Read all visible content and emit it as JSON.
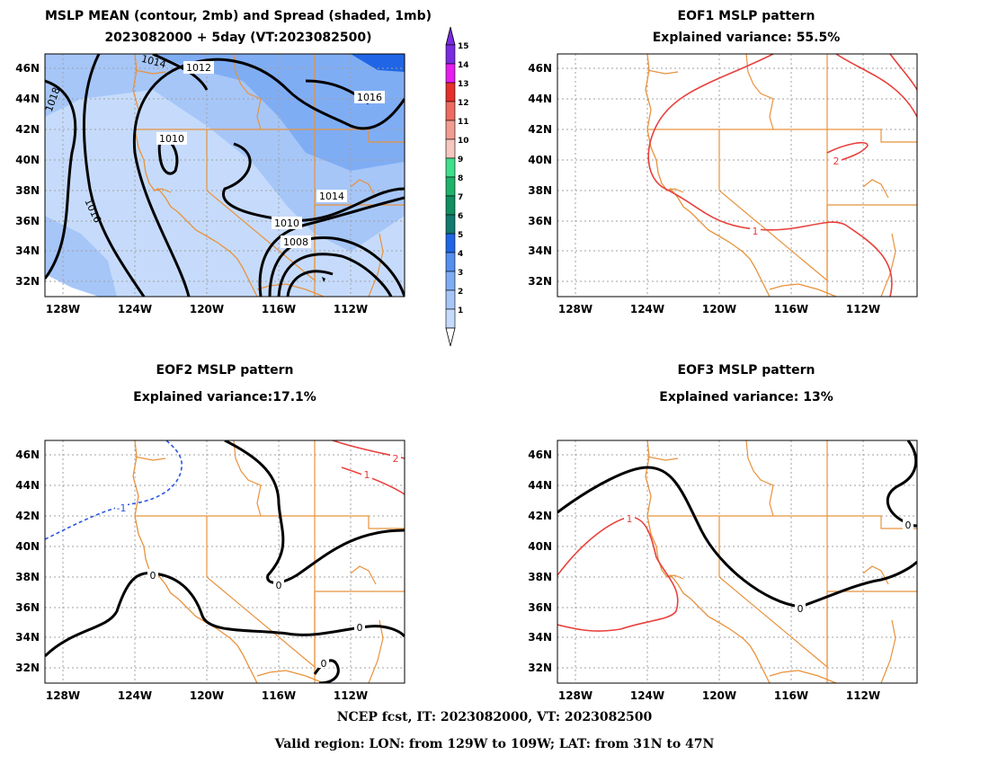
{
  "panels": [
    {
      "title1": "MSLP MEAN (contour, 2mb) and Spread (shaded, 1mb)",
      "title2": "2023082000 + 5day (VT:2023082500)"
    },
    {
      "title1": "EOF1 MSLP pattern",
      "title2": "Explained variance: 55.5%"
    },
    {
      "title1": "EOF2 MSLP pattern",
      "title2": "Explained variance:17.1%"
    },
    {
      "title1": "EOF3 MSLP pattern",
      "title2": "Explained variance: 13%"
    }
  ],
  "axes": {
    "lon_ticks": [
      "128W",
      "124W",
      "120W",
      "116W",
      "112W"
    ],
    "lat_ticks": [
      "46N",
      "44N",
      "42N",
      "40N",
      "38N",
      "36N",
      "34N",
      "32N"
    ]
  },
  "colorbar": {
    "levels": [
      "1",
      "2",
      "3",
      "4",
      "5",
      "6",
      "7",
      "8",
      "9",
      "10",
      "11",
      "12",
      "13",
      "14",
      "15"
    ],
    "colors": [
      "#c6dbfb",
      "#a6c6f8",
      "#7fadf4",
      "#5590ef",
      "#1f66e6",
      "#127a6e",
      "#118f5f",
      "#1fb36a",
      "#3fe08d",
      "#f6c6c0",
      "#f39c92",
      "#ee6b61",
      "#e6302a",
      "#e61ef0",
      "#7a2be0"
    ]
  },
  "mean_contours": [
    "1018",
    "1016",
    "1014",
    "1012",
    "1010",
    "1008",
    "1010",
    "1014",
    "1016"
  ],
  "eof_labels": {
    "eof1": [
      "1",
      "2"
    ],
    "eof2": [
      "-1",
      "1",
      "2",
      "0",
      "0",
      "0",
      "0"
    ],
    "eof3": [
      "1",
      "0",
      "0"
    ]
  },
  "footer": {
    "line1": "NCEP fcst, IT: 2023082000, VT: 2023082500",
    "line2": "Valid region: LON: from 129W to 109W; LAT: from 31N to 47N"
  },
  "style": {
    "coast": "#e8923c",
    "positive": "#e8403c",
    "negative": "#2a56e6",
    "zero": "#000000"
  }
}
